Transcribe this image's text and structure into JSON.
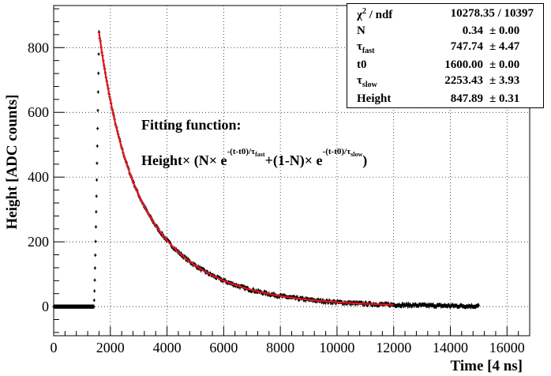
{
  "chart_data": {
    "type": "scatter",
    "xlabel": "Time [4 ns]",
    "ylabel": "Height [ADC counts]",
    "xlim": [
      0,
      16800
    ],
    "ylim": [
      -90,
      930
    ],
    "xticks": [
      0,
      2000,
      4000,
      6000,
      8000,
      10000,
      12000,
      14000,
      16000
    ],
    "xtick_labels": [
      "0",
      "2000",
      "4000",
      "6000",
      "8000",
      "10000",
      "12000",
      "14000",
      "16000"
    ],
    "yticks": [
      0,
      200,
      400,
      600,
      800
    ],
    "ytick_labels": [
      "0",
      "200",
      "400",
      "600",
      "800"
    ],
    "grid": true,
    "series": [
      {
        "name": "data",
        "color": "#000000",
        "marker": "error-bar",
        "baseline": 0,
        "x_start": 0,
        "rise_start": 1420,
        "peak_x": 1600,
        "peak": 840,
        "x_end": 15000
      },
      {
        "name": "fit",
        "color": "#e8141b",
        "x_range": [
          1600,
          12000
        ],
        "function": "Height*(N*exp(-(t-t0)/tau_fast)+(1-N)*exp(-(t-t0)/tau_slow))"
      }
    ],
    "fit_params": {
      "N": 0.34,
      "tau_fast": 747.74,
      "t0": 1600.0,
      "tau_slow": 2253.43,
      "Height": 847.89
    }
  },
  "stats": {
    "rows": [
      {
        "label": "χ",
        "label_sup": "2",
        "label_tail": " / ndf",
        "value": "10278.35 / 10397",
        "error": ""
      },
      {
        "label": "N",
        "value": "0.34",
        "error": "± 0.00"
      },
      {
        "label": "τ",
        "label_sub": "fast",
        "value": "747.74",
        "error": "± 4.47"
      },
      {
        "label": "t0",
        "value": "1600.00",
        "error": "± 0.00"
      },
      {
        "label": "τ",
        "label_sub": "slow",
        "value": "2253.43",
        "error": "± 3.93"
      },
      {
        "label": "Height",
        "value": "847.89",
        "error": "± 0.31"
      }
    ]
  },
  "annotation": {
    "title": "Fitting function:",
    "f_head": "Height× (N× e",
    "exp_fast": "-(t-t0)/τ",
    "exp_fast_sub": "fast",
    "f_mid": "+(1-N)× e",
    "exp_slow": "-(t-t0)/τ",
    "exp_slow_sub": "slow",
    "f_tail": ")"
  }
}
